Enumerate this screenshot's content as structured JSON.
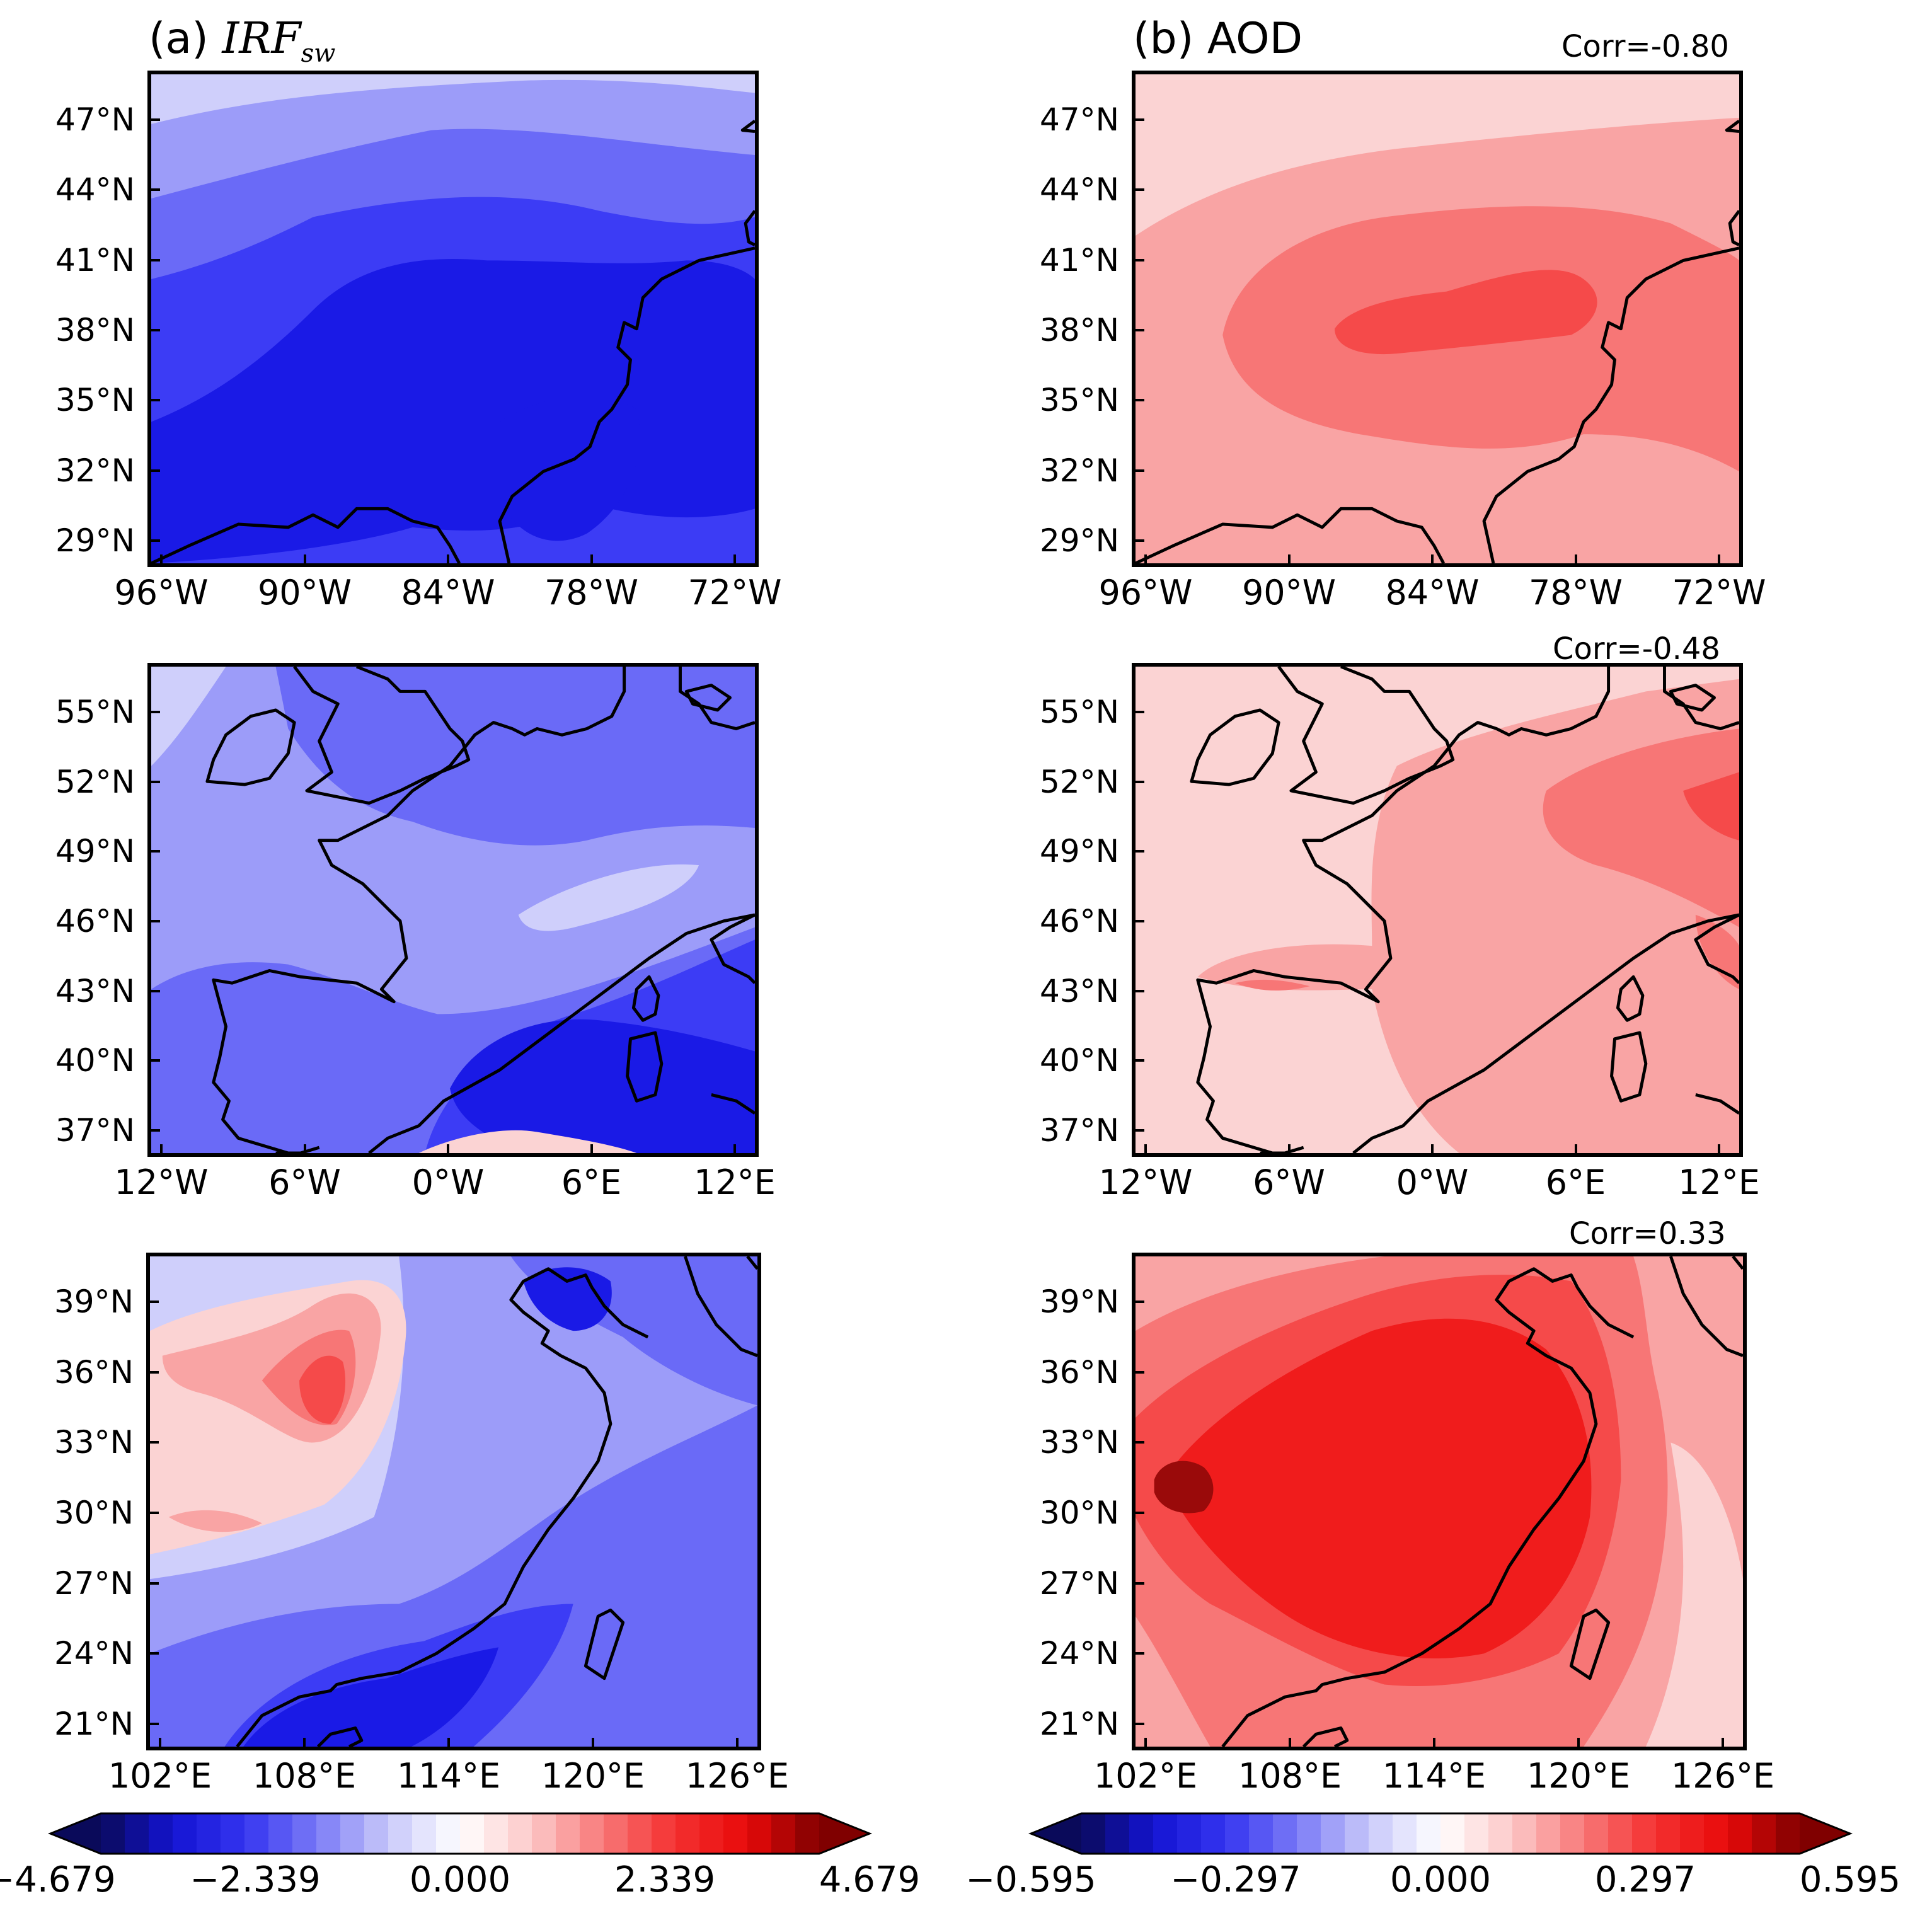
{
  "colors": {
    "neg5": "#0a0a6e",
    "neg4": "#1a1ae6",
    "neg3": "#3c3cf5",
    "neg2": "#6a6af7",
    "neg1": "#9c9cf9",
    "neg0": "#cfcffb",
    "pos0": "#fbd3d3",
    "pos1": "#f9a4a4",
    "pos2": "#f77676",
    "pos3": "#f54a4a",
    "pos4": "#f01c1c",
    "pos5": "#9a0a0a",
    "coast": "#000000"
  },
  "column_a": {
    "title_prefix": "(a)",
    "title_main": "IRF",
    "title_sub": "sw"
  },
  "column_b": {
    "title_prefix": "(b)",
    "title_main": "AOD"
  },
  "rows": [
    {
      "region": "Eastern United States",
      "corr": "Corr=-0.80",
      "yticks": [
        "47°N",
        "44°N",
        "41°N",
        "38°N",
        "35°N",
        "32°N",
        "29°N"
      ],
      "xticks": [
        "96°W",
        "90°W",
        "84°W",
        "78°W",
        "72°W"
      ]
    },
    {
      "region": "Western Europe",
      "corr": "Corr=-0.48",
      "yticks": [
        "55°N",
        "52°N",
        "49°N",
        "46°N",
        "43°N",
        "40°N",
        "37°N"
      ],
      "xticks": [
        "12°W",
        "6°W",
        "0°W",
        "6°E",
        "12°E"
      ]
    },
    {
      "region": "Eastern China",
      "corr": "Corr=0.33",
      "yticks": [
        "39°N",
        "36°N",
        "33°N",
        "30°N",
        "27°N",
        "24°N",
        "21°N"
      ],
      "xticks": [
        "102°E",
        "108°E",
        "114°E",
        "120°E",
        "126°E"
      ]
    }
  ],
  "colorbar_a": {
    "levels": 30,
    "ticks": [
      "−4.679",
      "−2.339",
      "0.000",
      "2.339",
      "4.679"
    ]
  },
  "colorbar_b": {
    "levels": 30,
    "ticks": [
      "−0.595",
      "−0.297",
      "0.000",
      "0.297",
      "0.595"
    ]
  }
}
